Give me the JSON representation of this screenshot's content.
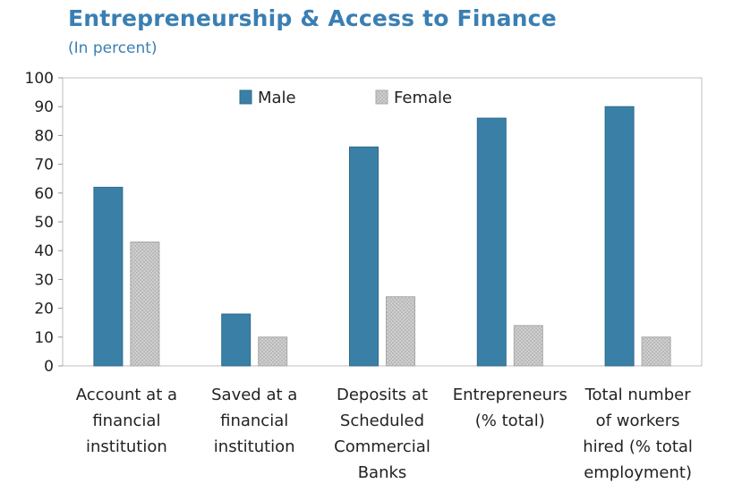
{
  "chart_data": {
    "type": "bar",
    "title": "Entrepreneurship & Access to Finance",
    "subtitle": "(In percent)",
    "categories": [
      [
        "Account at a",
        "financial",
        "institution"
      ],
      [
        "Saved at a",
        "financial",
        "institution"
      ],
      [
        "Deposits at",
        "Scheduled",
        "Commercial",
        "Banks"
      ],
      [
        "Entrepreneurs",
        "(% total)"
      ],
      [
        "Total number",
        "of workers",
        "hired (% total",
        "employment)"
      ]
    ],
    "series": [
      {
        "name": "Male",
        "values": [
          62,
          18,
          76,
          86,
          90
        ],
        "color": "#3a7fa6"
      },
      {
        "name": "Female",
        "values": [
          43,
          10,
          24,
          14,
          10
        ],
        "color": "#c8c8c8"
      }
    ],
    "ylim": [
      0,
      100
    ],
    "yticks": [
      0,
      10,
      20,
      30,
      40,
      50,
      60,
      70,
      80,
      90,
      100
    ],
    "legend_position": "top-center",
    "grid": false
  }
}
